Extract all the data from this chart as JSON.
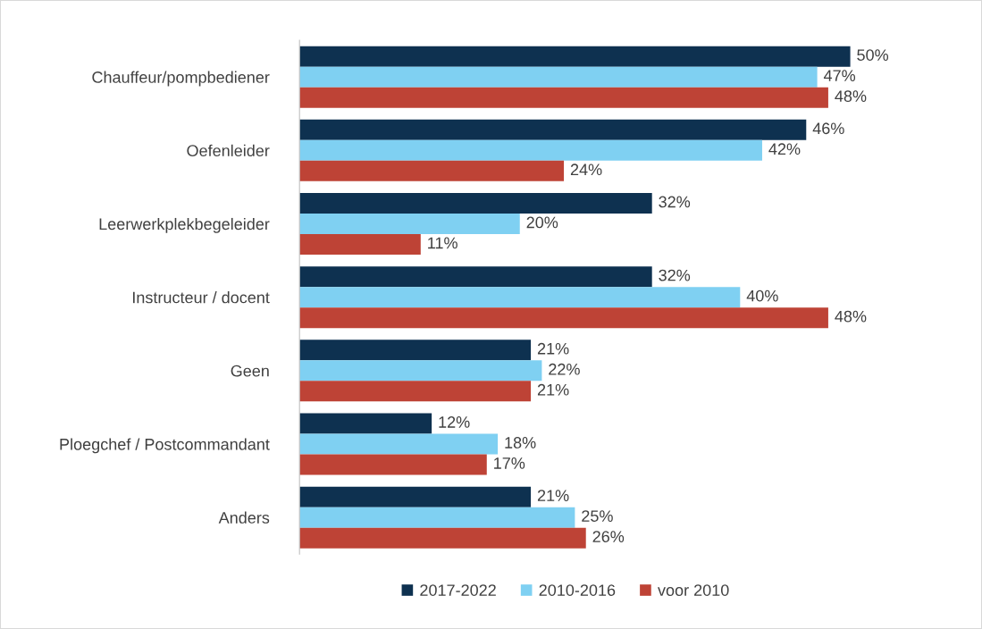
{
  "chart_data": {
    "type": "bar",
    "orientation": "horizontal",
    "categories": [
      "Chauffeur/pompbediener",
      "Oefenleider",
      "Leerwerkplekbegeleider",
      "Instructeur / docent",
      "Geen",
      "Ploegchef / Postcommandant",
      "Anders"
    ],
    "series": [
      {
        "name": "2017-2022",
        "color": "#0e3150",
        "values": [
          50,
          46,
          32,
          32,
          21,
          12,
          21
        ],
        "value_labels": [
          "50%",
          "46%",
          "32%",
          "32%",
          "21%",
          "12%",
          "21%"
        ]
      },
      {
        "name": "2010-2016",
        "color": "#7fd0f2",
        "values": [
          47,
          42,
          20,
          40,
          22,
          18,
          25
        ],
        "value_labels": [
          "47%",
          "42%",
          "20%",
          "40%",
          "22%",
          "18%",
          "25%"
        ]
      },
      {
        "name": "voor 2010",
        "color": "#be4336",
        "values": [
          48,
          24,
          11,
          48,
          21,
          17,
          26
        ],
        "value_labels": [
          "48%",
          "24%",
          "11%",
          "48%",
          "21%",
          "17%",
          "26%"
        ]
      }
    ],
    "legend": "bottom",
    "grid": false
  }
}
